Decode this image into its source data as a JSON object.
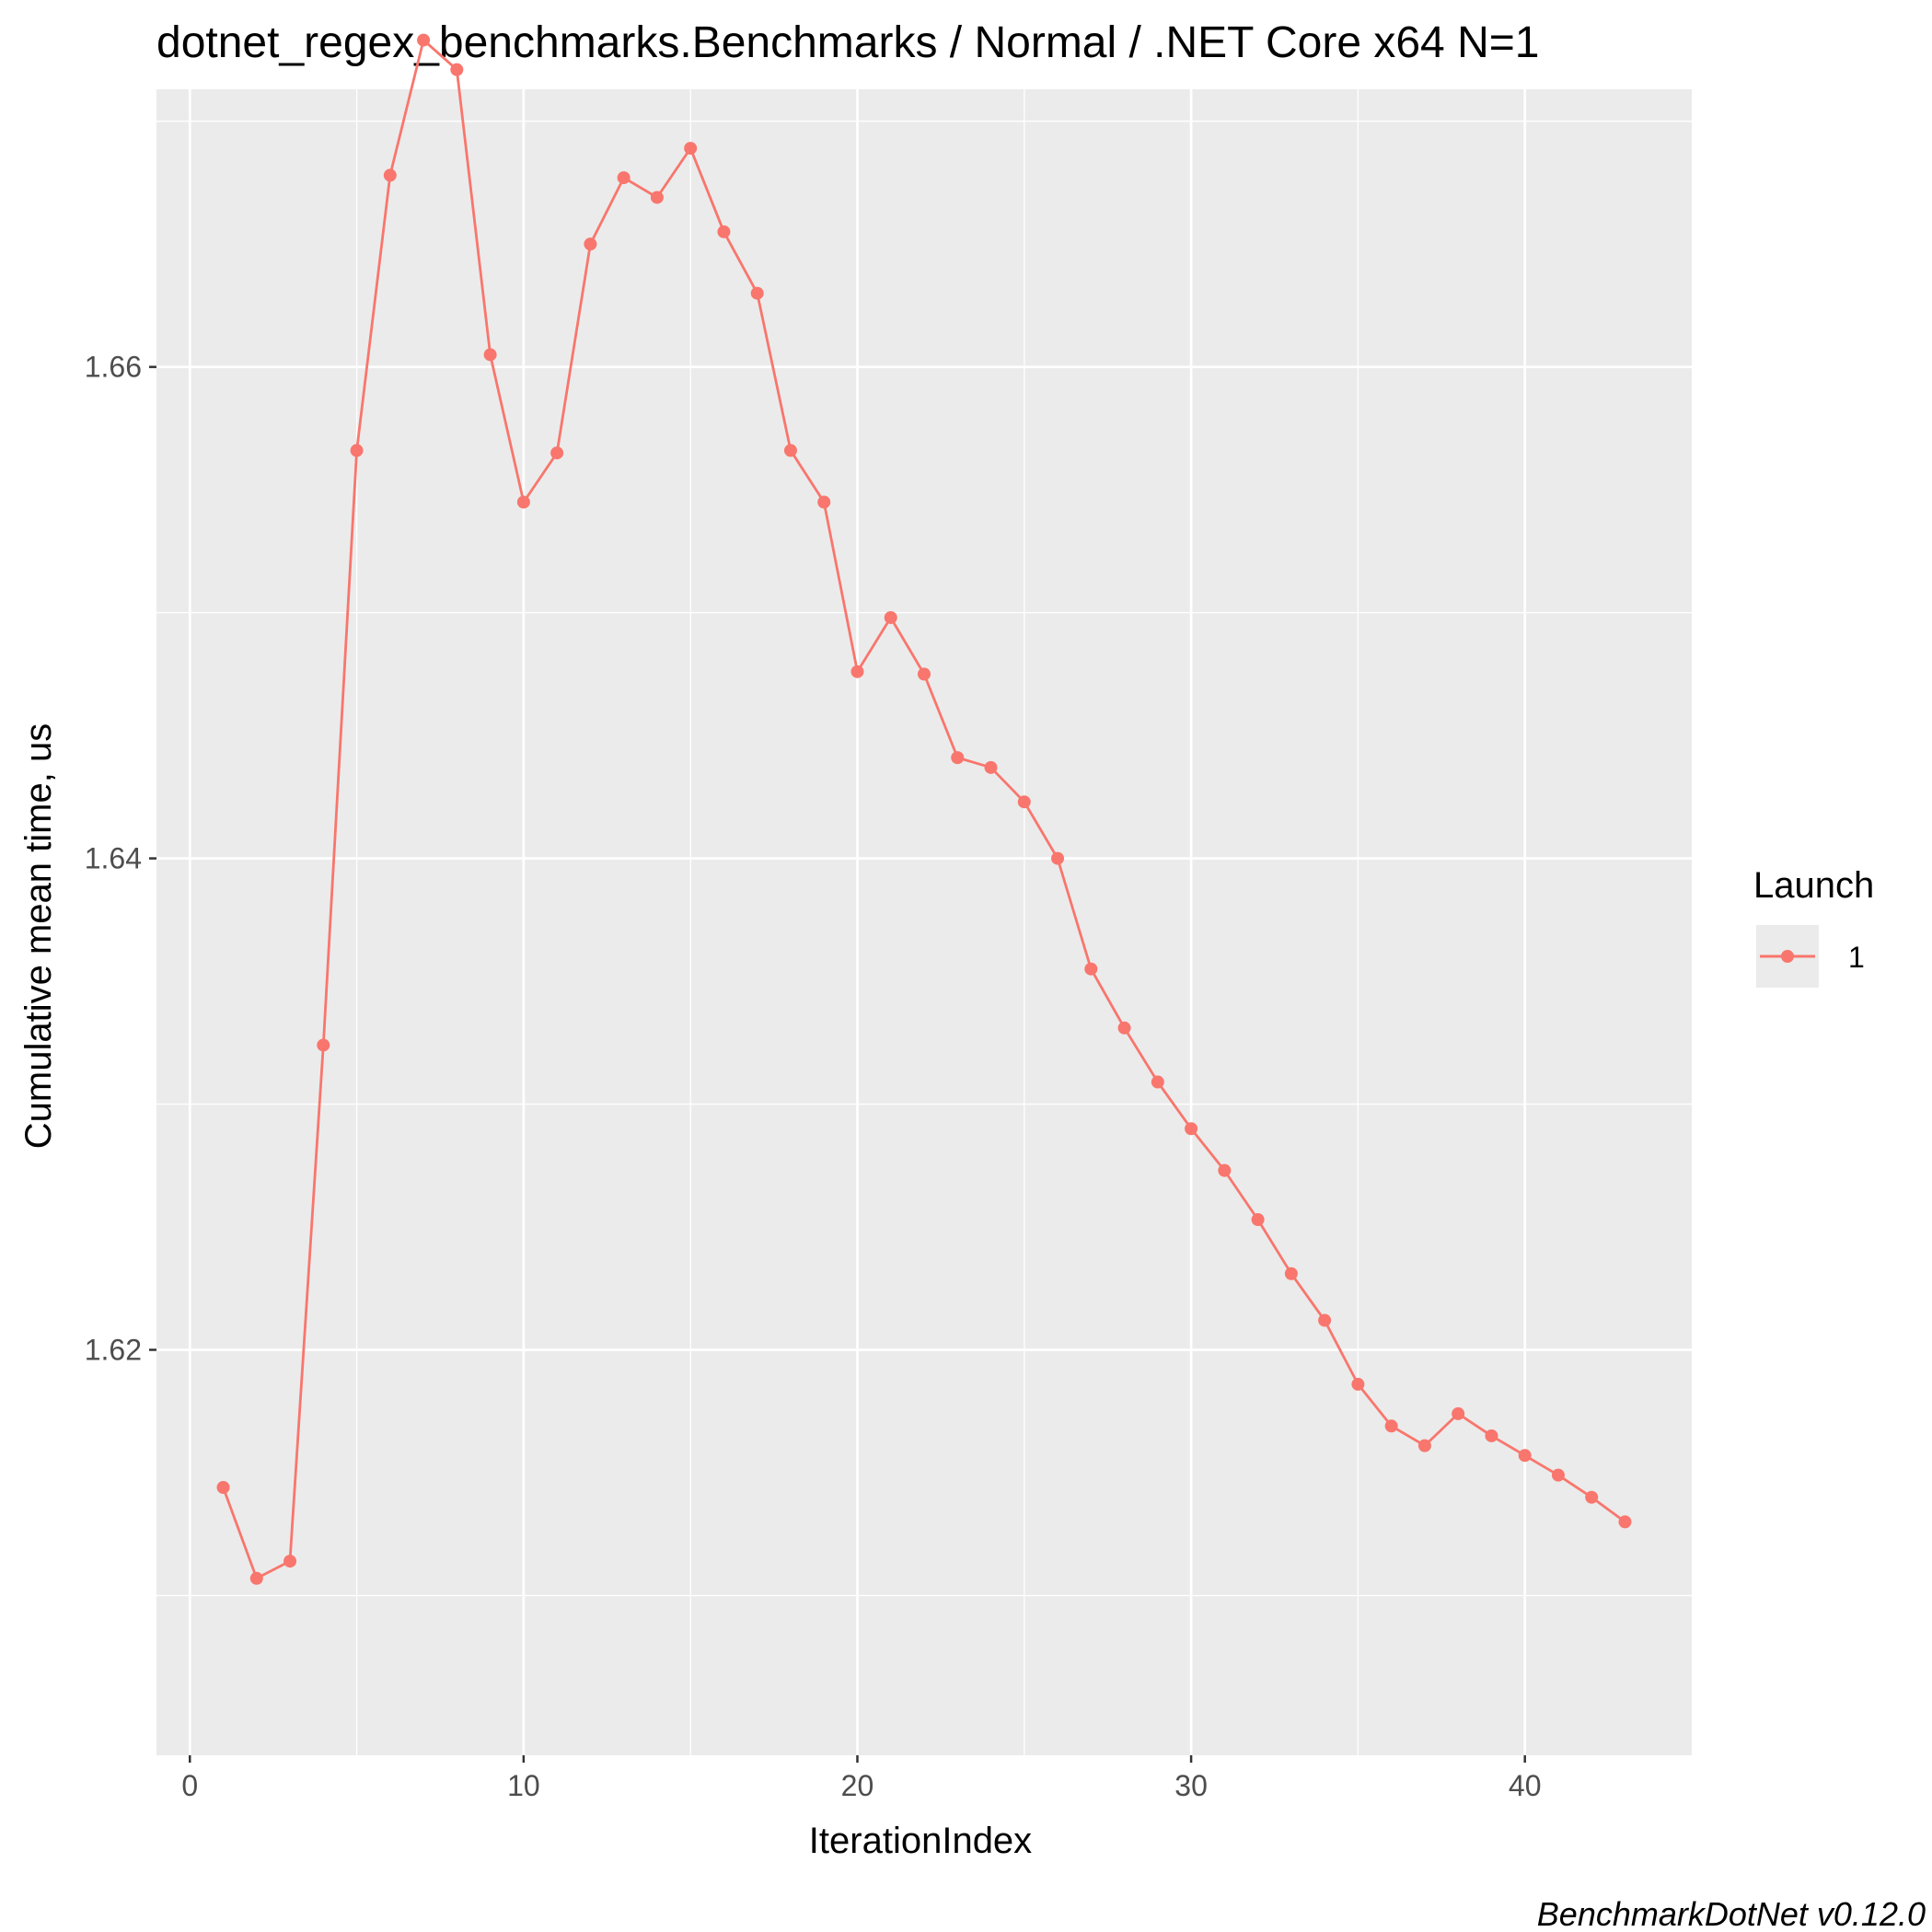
{
  "chart_data": {
    "type": "line",
    "title": "dotnet_regex_benchmarks.Benchmarks / Normal / .NET Core x64 N=1",
    "xlabel": "IterationIndex",
    "ylabel": "Cumulative mean time, us",
    "xlim": [
      -1,
      45
    ],
    "ylim": [
      1.6035,
      1.6713
    ],
    "x_ticks": [
      0,
      10,
      20,
      30,
      40
    ],
    "x_tick_labels": [
      "0",
      "10",
      "20",
      "30",
      "40"
    ],
    "y_ticks": [
      1.62,
      1.64,
      1.66
    ],
    "y_tick_labels": [
      "1.62",
      "1.64",
      "1.66"
    ],
    "grid": true,
    "legend": {
      "title": "Launch",
      "position": "right"
    },
    "series": [
      {
        "name": "1",
        "color": "#F8766D",
        "x": [
          1,
          2,
          3,
          4,
          5,
          6,
          7,
          8,
          9,
          10,
          11,
          12,
          13,
          14,
          15,
          16,
          17,
          18,
          19,
          20,
          21,
          22,
          23,
          24,
          25,
          26,
          27,
          28,
          29,
          30,
          31,
          32,
          33,
          34,
          35,
          36,
          37,
          38,
          39,
          40,
          41,
          42,
          43
        ],
        "y": [
          1.6144,
          1.6107,
          1.6114,
          1.6324,
          1.6566,
          1.6678,
          1.6733,
          1.6721,
          1.6605,
          1.6545,
          1.6565,
          1.665,
          1.6677,
          1.6669,
          1.6689,
          1.6655,
          1.663,
          1.6566,
          1.6545,
          1.6476,
          1.6498,
          1.6475,
          1.6441,
          1.6437,
          1.6423,
          1.64,
          1.6355,
          1.6331,
          1.6309,
          1.629,
          1.6273,
          1.6253,
          1.6231,
          1.6212,
          1.6186,
          1.6169,
          1.6161,
          1.6174,
          1.6165,
          1.6157,
          1.6149,
          1.614,
          1.613
        ]
      }
    ]
  },
  "caption": "BenchmarkDotNet v0.12.0"
}
